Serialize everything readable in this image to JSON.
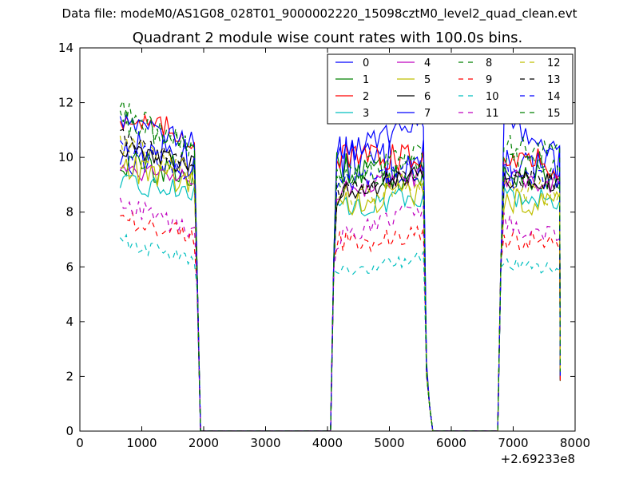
{
  "suptitle": "Data file: modeM0/AS1G08_028T01_9000002220_15098cztM0_level2_quad_clean.evt",
  "chart_data": {
    "type": "line",
    "title": "Quadrant 2 module wise count rates with 100.0s bins.",
    "xlabel": "",
    "ylabel": "",
    "x_offset_label": "+2.69233e8",
    "xlim": [
      0,
      8000
    ],
    "ylim": [
      0,
      14
    ],
    "xticks": [
      "0",
      "1000",
      "2000",
      "3000",
      "4000",
      "5000",
      "6000",
      "7000",
      "8000"
    ],
    "yticks": [
      "0",
      "2",
      "4",
      "6",
      "8",
      "10",
      "12",
      "14"
    ],
    "grid": false,
    "legend_position": "top-right",
    "series": [
      {
        "name": "0",
        "color": "#0000ff",
        "dashed": false,
        "level": [
          10.2,
          10.0,
          9.9,
          9.8,
          9.6,
          9.5
        ],
        "noise": 0.9
      },
      {
        "name": "1",
        "color": "#008000",
        "dashed": false,
        "level": [
          9.8,
          9.4,
          9.6,
          9.3,
          9.5,
          9.3
        ],
        "noise": 0.6
      },
      {
        "name": "2",
        "color": "#ff0000",
        "dashed": false,
        "level": [
          11.5,
          10.7,
          10.0,
          10.0,
          10.2,
          9.6
        ],
        "noise": 0.5
      },
      {
        "name": "3",
        "color": "#00bfbf",
        "dashed": false,
        "level": [
          9.0,
          8.8,
          8.1,
          8.6,
          8.6,
          8.5
        ],
        "noise": 0.4
      },
      {
        "name": "4",
        "color": "#bf00bf",
        "dashed": false,
        "level": [
          9.6,
          9.4,
          8.7,
          9.3,
          9.2,
          9.0
        ],
        "noise": 0.4
      },
      {
        "name": "5",
        "color": "#bfbf00",
        "dashed": false,
        "level": [
          9.7,
          9.0,
          8.2,
          8.8,
          8.4,
          8.4
        ],
        "noise": 0.5
      },
      {
        "name": "6",
        "color": "#000000",
        "dashed": false,
        "level": [
          10.3,
          9.7,
          8.6,
          9.4,
          9.2,
          9.0
        ],
        "noise": 0.4
      },
      {
        "name": "7",
        "color": "#0000ff",
        "dashed": false,
        "level": [
          11.5,
          10.6,
          10.0,
          11.4,
          11.3,
          10.1
        ],
        "noise": 0.4
      },
      {
        "name": "8",
        "color": "#008000",
        "dashed": true,
        "level": [
          11.8,
          10.2,
          9.0,
          9.9,
          10.0,
          9.7
        ],
        "noise": 0.5
      },
      {
        "name": "9",
        "color": "#ff0000",
        "dashed": true,
        "level": [
          7.8,
          7.1,
          6.9,
          7.1,
          7.0,
          6.9
        ],
        "noise": 0.4
      },
      {
        "name": "10",
        "color": "#00bfbf",
        "dashed": true,
        "level": [
          7.0,
          6.2,
          5.7,
          6.4,
          6.2,
          6.0
        ],
        "noise": 0.3
      },
      {
        "name": "11",
        "color": "#bf00bf",
        "dashed": true,
        "level": [
          8.4,
          7.2,
          7.0,
          8.1,
          7.6,
          7.1
        ],
        "noise": 0.4
      },
      {
        "name": "12",
        "color": "#bfbf00",
        "dashed": true,
        "level": [
          10.6,
          9.3,
          8.4,
          9.2,
          8.9,
          8.7
        ],
        "noise": 0.5
      },
      {
        "name": "13",
        "color": "#000000",
        "dashed": true,
        "level": [
          10.8,
          9.6,
          8.7,
          9.5,
          9.3,
          9.1
        ],
        "noise": 0.4
      },
      {
        "name": "14",
        "color": "#0000ff",
        "dashed": true,
        "level": [
          10.4,
          9.4,
          9.0,
          9.6,
          9.4,
          9.2
        ],
        "noise": 0.4
      },
      {
        "name": "15",
        "color": "#008000",
        "dashed": true,
        "level": [
          11.4,
          10.4,
          9.4,
          10.1,
          10.4,
          10.0
        ],
        "noise": 0.5
      }
    ]
  }
}
